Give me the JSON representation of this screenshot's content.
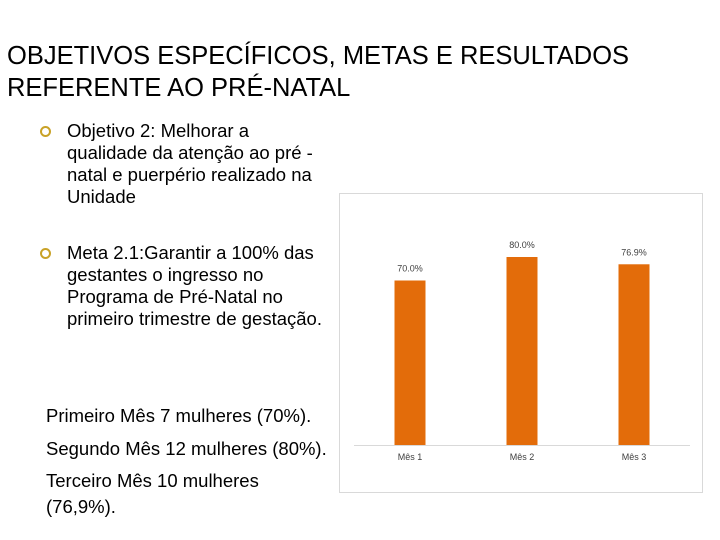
{
  "title": {
    "line1": "OBJETIVOS ESPECÍFICOS, METAS E RESULTADOS",
    "line2": "REFERENTE AO PRÉ-NATAL"
  },
  "bullets": [
    {
      "text": "Objetivo 2: Melhorar a qualidade da atenção ao pré -natal e puerpério realizado na Unidade",
      "icon": "circle-bullet-icon"
    },
    {
      "text": "Meta 2.1:Garantir a 100% das gestantes o ingresso no Programa de Pré-Natal no primeiro trimestre de gestação.",
      "icon": "circle-bullet-icon"
    }
  ],
  "results": [
    "Primeiro Mês 7 mulheres (70%).",
    "Segundo Mês 12 mulheres (80%).",
    "Terceiro Mês 10 mulheres (76,9%)."
  ],
  "colors": {
    "bar": "#e36c0a",
    "bullet": "#c9a227",
    "axis": "#d9d9d9"
  },
  "chart_data": {
    "type": "bar",
    "categories": [
      "Mês 1",
      "Mês 2",
      "Mês 3"
    ],
    "values": [
      70.0,
      80.0,
      76.9
    ],
    "data_labels": [
      "70.0%",
      "80.0%",
      "76.9%"
    ],
    "title": "",
    "xlabel": "",
    "ylabel": "",
    "ylim": [
      0,
      100
    ],
    "grid": false,
    "legend": "none"
  }
}
